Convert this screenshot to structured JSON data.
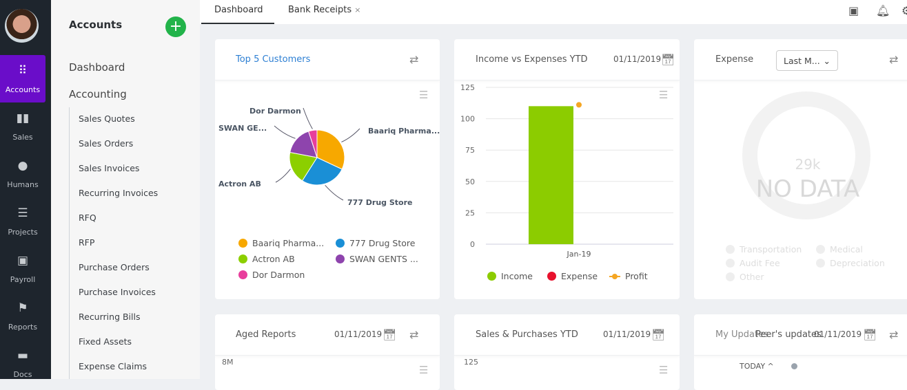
{
  "rail": {
    "items": [
      {
        "label": "Accounts",
        "icon": "grid-icon",
        "active": true
      },
      {
        "label": "Sales",
        "icon": "bar-chart-icon"
      },
      {
        "label": "Humans",
        "icon": "person-icon"
      },
      {
        "label": "Projects",
        "icon": "stack-icon"
      },
      {
        "label": "Payroll",
        "icon": "wallet-icon"
      },
      {
        "label": "Reports",
        "icon": "flag-icon"
      },
      {
        "label": "Docs",
        "icon": "folder-icon"
      }
    ]
  },
  "nav": {
    "title": "Accounts",
    "add_label": "+",
    "dashboard": "Dashboard",
    "accounting": "Accounting",
    "items": [
      "Sales Quotes",
      "Sales Orders",
      "Sales Invoices",
      "Recurring Invoices",
      "RFQ",
      "RFP",
      "Purchase Orders",
      "Purchase Invoices",
      "Recurring Bills",
      "Fixed Assets",
      "Expense Claims"
    ]
  },
  "tabs": [
    {
      "label": "Dashboard",
      "active": true
    },
    {
      "label": "Bank Receipts",
      "close": "×"
    }
  ],
  "cards": {
    "top5": {
      "title": "Top 5 Customers"
    },
    "income": {
      "title": "Income vs Expenses YTD",
      "date": "01/11/2019"
    },
    "expense": {
      "title": "Expense",
      "select": "Last M...",
      "center_value": "29k",
      "no_data": "NO DATA",
      "legend": [
        "Transportation",
        "Medical",
        "Audit Fee",
        "Depreciation",
        "Other"
      ]
    },
    "aged": {
      "title": "Aged Reports",
      "date": "01/11/2019",
      "ytick": "8M"
    },
    "salespurch": {
      "title": "Sales & Purchases YTD",
      "date": "01/11/2019",
      "ytick": "125"
    },
    "updates": {
      "title_a": "My Updates",
      "title_b": "Peer's updates",
      "date": "01/11/2019",
      "today": "TODAY ^"
    }
  },
  "chart_data": [
    {
      "type": "pie",
      "title": "Top 5 Customers",
      "labels": [
        "Baariq Pharma...",
        "777 Drug Store",
        "Actron AB",
        "SWAN GENTS ...",
        "Dor Darmon"
      ],
      "slice_labels": [
        "Baariq Pharma...",
        "777 Drug Store",
        "Actron AB",
        "SWAN GE...",
        "Dor Darmon"
      ],
      "values": [
        32,
        27,
        19,
        17,
        5
      ],
      "colors": [
        "#f7a800",
        "#1a8fd6",
        "#8ccf00",
        "#8e44ad",
        "#e83e9c"
      ],
      "legend": "bottom"
    },
    {
      "type": "bar",
      "title": "Income vs Expenses YTD",
      "categories": [
        "Jan-19"
      ],
      "series": [
        {
          "name": "Income",
          "values": [
            110
          ],
          "color": "#8ccc00"
        },
        {
          "name": "Expense",
          "values": [
            0
          ],
          "color": "#e8112d"
        },
        {
          "name": "Profit",
          "values": [
            110
          ],
          "color": "#f5a623",
          "kind": "point"
        }
      ],
      "yticks": [
        "0",
        "25",
        "50",
        "75",
        "100",
        "125"
      ],
      "ylim": [
        0,
        125
      ],
      "grid": true,
      "legend": "bottom"
    }
  ]
}
